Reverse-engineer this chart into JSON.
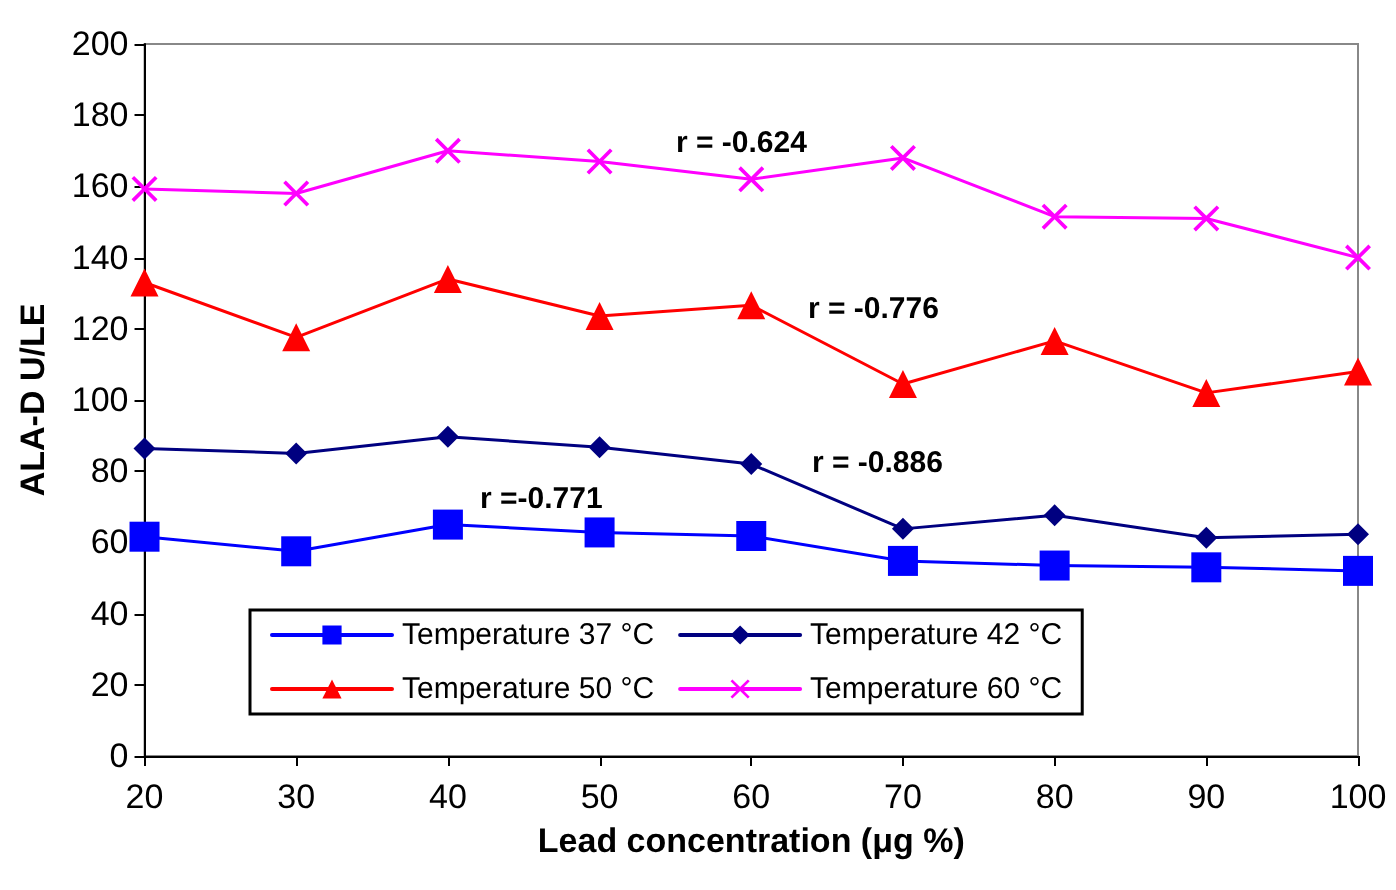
{
  "chart_data": {
    "type": "line",
    "xlabel": "Lead concentration (μg %)",
    "ylabel": "ALA-D U/LE",
    "x": [
      20,
      30,
      40,
      50,
      60,
      70,
      80,
      90,
      100
    ],
    "series": [
      {
        "name": "Temperature 37 °C",
        "color": "#0000ff",
        "marker": "square",
        "values": [
          61.6,
          57.5,
          65,
          62.8,
          61.8,
          54.8,
          53.5,
          53,
          52
        ]
      },
      {
        "name": "Temperature 42 °C",
        "color": "#000080",
        "marker": "diamond",
        "values": [
          86.4,
          85,
          89.7,
          86.7,
          82,
          63.8,
          67.6,
          61.3,
          62.3
        ]
      },
      {
        "name": "Temperature 50 °C",
        "color": "#ff0000",
        "marker": "triangle",
        "values": [
          133,
          117.6,
          134,
          123.6,
          126.6,
          104.5,
          116.6,
          102,
          108
        ]
      },
      {
        "name": "Temperature 60 °C",
        "color": "#ff00ff",
        "marker": "cross",
        "values": [
          159.3,
          158,
          170,
          167,
          162,
          168,
          151.5,
          151,
          140
        ]
      }
    ],
    "annotations": [
      "r = -0.624",
      "r = -0.776",
      "r = -0.886",
      "r =-0.771"
    ],
    "xlim": [
      20,
      100
    ],
    "xticks": [
      20,
      30,
      40,
      50,
      60,
      70,
      80,
      90,
      100
    ],
    "ylim": [
      0,
      200
    ],
    "yticks": [
      0,
      20,
      40,
      60,
      80,
      100,
      120,
      140,
      160,
      180,
      200
    ],
    "grid": false,
    "legend": "bottom"
  }
}
